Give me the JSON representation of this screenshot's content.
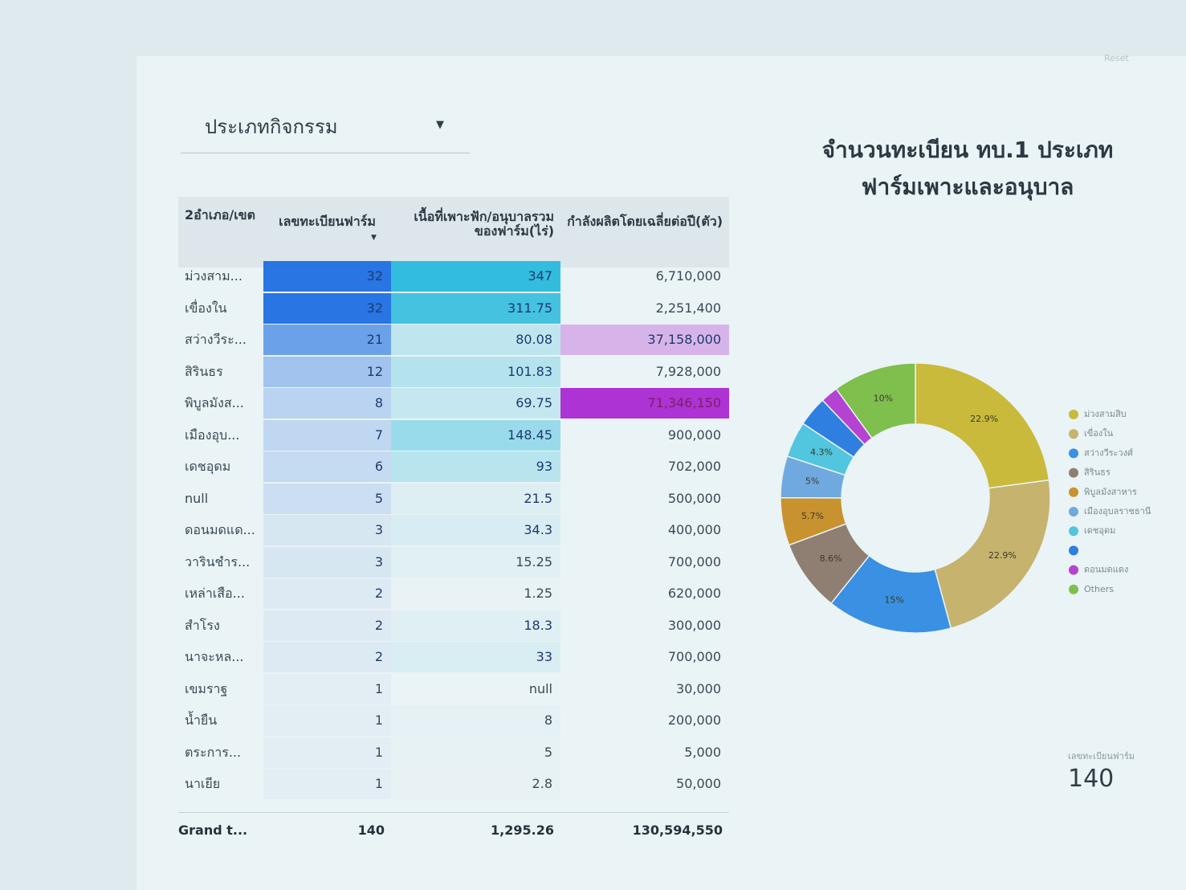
{
  "toolbar": {
    "reset": "Reset"
  },
  "filter": {
    "label": "ประเภทกิจกรรม"
  },
  "table": {
    "headers": [
      "2อำเภอ/เขต",
      "เลขทะเบียนฟาร์ม",
      "เนื้อที่เพาะฟัก/อนุบาลรวมของฟาร์ม(ไร่)",
      "กำลังผลิตโดยเฉลี่ยต่อปี(ตัว)"
    ],
    "rows": [
      [
        "ม่วงสาม...",
        "32",
        "347",
        "6,710,000"
      ],
      [
        "เขื่องใน",
        "32",
        "311.75",
        "2,251,400"
      ],
      [
        "สว่างวีระ...",
        "21",
        "80.08",
        "37,158,000"
      ],
      [
        "สิรินธร",
        "12",
        "101.83",
        "7,928,000"
      ],
      [
        "พิบูลมังส...",
        "8",
        "69.75",
        "71,346,150"
      ],
      [
        "เมืองอุบ...",
        "7",
        "148.45",
        "900,000"
      ],
      [
        "เดชอุดม",
        "6",
        "93",
        "702,000"
      ],
      [
        "null",
        "5",
        "21.5",
        "500,000"
      ],
      [
        "ดอนมดแด...",
        "3",
        "34.3",
        "400,000"
      ],
      [
        "วารินชำร...",
        "3",
        "15.25",
        "700,000"
      ],
      [
        "เหล่าเสือ...",
        "2",
        "1.25",
        "620,000"
      ],
      [
        "สำโรง",
        "2",
        "18.3",
        "300,000"
      ],
      [
        "นาจะหล...",
        "2",
        "33",
        "700,000"
      ],
      [
        "เขมราฐ",
        "1",
        "null",
        "30,000"
      ],
      [
        "น้ำยืน",
        "1",
        "8",
        "200,000"
      ],
      [
        "ตระการ...",
        "1",
        "5",
        "5,000"
      ],
      [
        "นาเยีย",
        "1",
        "2.8",
        "50,000"
      ]
    ],
    "total": [
      "Grand t...",
      "140",
      "1,295.26",
      "130,594,550"
    ]
  },
  "chart_data": {
    "type": "pie",
    "title": [
      "จำนวนทะเบียน ทบ.1 ประเภท",
      "ฟาร์มเพาะและอนุบาล"
    ],
    "categories": [
      "ม่วงสามสิบ",
      "เขื่องใน",
      "สว่างวีระวงศ์",
      "สิรินธร",
      "พิบูลมังสาหาร",
      "เมืองอุบลราชธานี",
      "เดชอุดม",
      null,
      "ดอนมดแดง",
      "Others"
    ],
    "values": [
      22.9,
      22.9,
      15,
      8.6,
      5.7,
      5,
      4.3,
      3.6,
      2.1,
      10
    ],
    "value_labels": [
      "22.9%",
      "22.9%",
      "15%",
      "8.6%",
      "5.7%",
      "5%",
      "4.3%",
      null,
      null,
      "10%"
    ],
    "colors": [
      "#c9ba3c",
      "#c5b36e",
      "#3a90e2",
      "#8f7f72",
      "#c8922e",
      "#6fa9df",
      "#52c5df",
      "#2f7fe0",
      "#b443d2",
      "#7fbf4d"
    ],
    "donut": true,
    "legend": "right"
  },
  "scorecard": {
    "label": "เลขทะเบียนฟาร์ม",
    "value": "140"
  }
}
